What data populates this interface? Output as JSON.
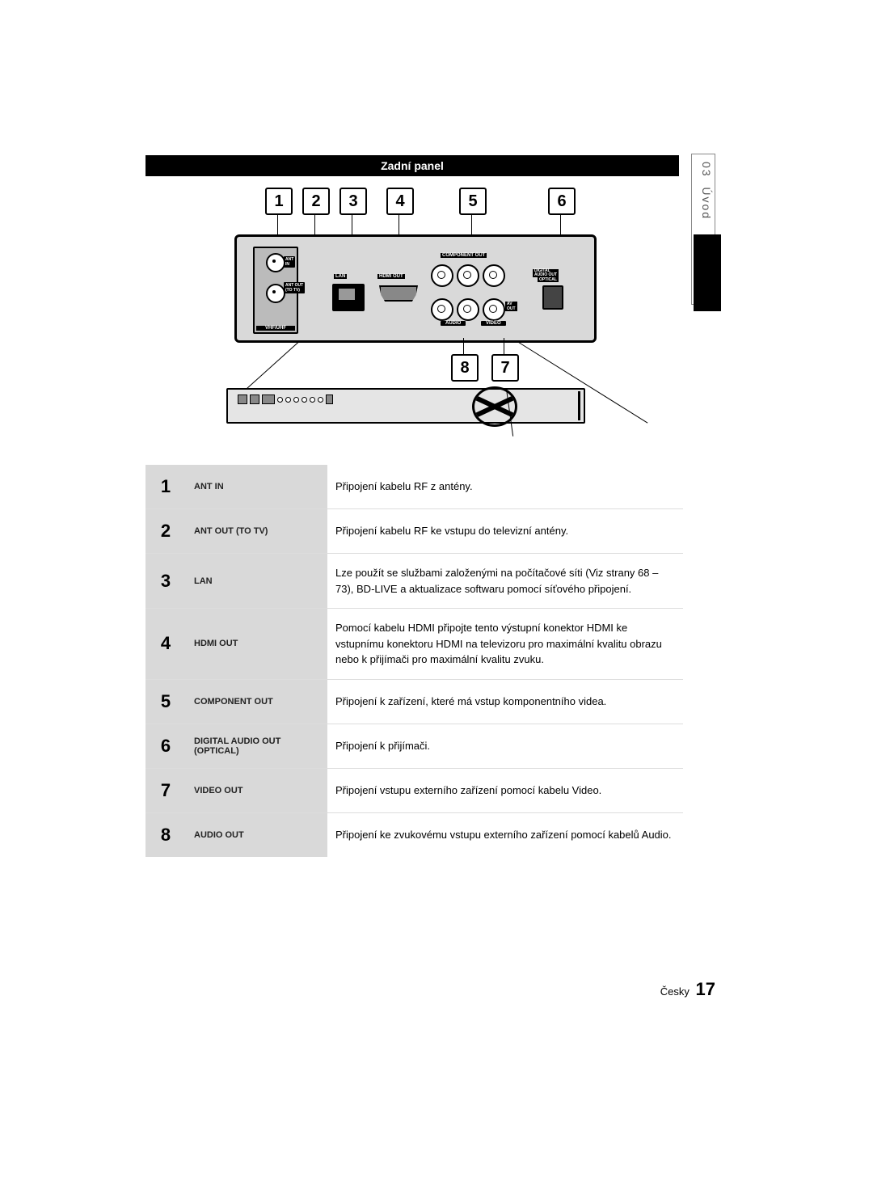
{
  "side": {
    "section_num": "03",
    "section_name": "Úvod"
  },
  "header": {
    "title": "Zadní panel"
  },
  "callouts": [
    "1",
    "2",
    "3",
    "4",
    "5",
    "6",
    "7",
    "8"
  ],
  "panel_labels": {
    "vhf": "VHF/UHF",
    "ant_in": "ANT IN",
    "ant_out": "ANT OUT (TO TV)",
    "lan": "LAN",
    "hdmi": "HDMI OUT",
    "component": "COMPONENT OUT",
    "av_out": "AV OUT",
    "audio": "AUDIO",
    "video": "VIDEO",
    "digital": "DIGITAL AUDIO OUT",
    "optical": "OPTICAL"
  },
  "rows": [
    {
      "n": "1",
      "name": "ANT IN",
      "desc": "Připojení kabelu RF z antény."
    },
    {
      "n": "2",
      "name": "ANT OUT (TO TV)",
      "desc": "Připojení kabelu RF ke vstupu do televizní antény."
    },
    {
      "n": "3",
      "name": "LAN",
      "desc": "Lze použít se službami založenými na počítačové síti (Viz strany 68 – 73), BD-LIVE a aktualizace softwaru pomocí síťového připojení."
    },
    {
      "n": "4",
      "name": "HDMI OUT",
      "desc": "Pomocí kabelu HDMI připojte tento výstupní konektor HDMI ke vstupnímu konektoru HDMI na televizoru pro maximální kvalitu obrazu nebo k přijímači pro maximální kvalitu zvuku."
    },
    {
      "n": "5",
      "name": "COMPONENT OUT",
      "desc": "Připojení k zařízení, které má vstup komponentního videa."
    },
    {
      "n": "6",
      "name": "DIGITAL AUDIO OUT (OPTICAL)",
      "desc": "Připojení k přijímači."
    },
    {
      "n": "7",
      "name": "VIDEO OUT",
      "desc": "Připojení vstupu externího zařízení pomocí kabelu Video."
    },
    {
      "n": "8",
      "name": "AUDIO OUT",
      "desc": "Připojení ke zvukovému vstupu externího zařízení pomocí kabelů Audio."
    }
  ],
  "footer": {
    "lang": "Česky",
    "page": "17"
  }
}
